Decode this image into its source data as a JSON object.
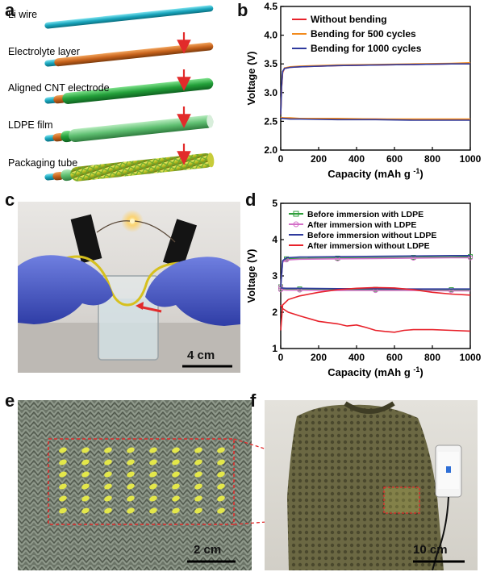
{
  "panels": {
    "a": "a",
    "b": "b",
    "c": "c",
    "d": "d",
    "e": "e",
    "f": "f"
  },
  "panel_a": {
    "labels": [
      "Li wire",
      "Electrolyte layer",
      "Aligned CNT electrode",
      "LDPE film",
      "Packaging tube"
    ]
  },
  "panel_c": {
    "scale_bar": "4 cm"
  },
  "panel_e": {
    "scale_bar": "2 cm"
  },
  "panel_f": {
    "scale_bar": "10 cm"
  },
  "chart_data": [
    {
      "id": "b",
      "type": "line",
      "xlabel": "Capacity (mAh g",
      "xlabel_sup": "-1",
      "xlabel_close": ")",
      "ylabel": "Voltage (V)",
      "xlim": [
        0,
        1000
      ],
      "ylim": [
        2.0,
        4.5
      ],
      "xticks": [
        "0",
        "200",
        "400",
        "600",
        "800",
        "1000"
      ],
      "yticks": [
        "2.0",
        "2.5",
        "3.0",
        "3.5",
        "4.0",
        "4.5"
      ],
      "legend_position": "top-right",
      "series": [
        {
          "name": "Without bending",
          "color": "#e8222b",
          "charge": {
            "x": [
              0,
              5,
              10,
              20,
              50,
              100,
              300,
              500,
              700,
              900,
              1000
            ],
            "y": [
              2.62,
              3.1,
              3.35,
              3.42,
              3.44,
              3.45,
              3.47,
              3.48,
              3.49,
              3.5,
              3.51
            ]
          },
          "discharge": {
            "x": [
              0,
              10,
              50,
              100,
              300,
              500,
              700,
              900,
              1000
            ],
            "y": [
              2.56,
              2.56,
              2.55,
              2.55,
              2.54,
              2.54,
              2.53,
              2.53,
              2.53
            ]
          }
        },
        {
          "name": "Bending for 500 cycles",
          "color": "#f28a1c",
          "charge": {
            "x": [
              0,
              5,
              10,
              20,
              50,
              100,
              300,
              500,
              700,
              900,
              1000
            ],
            "y": [
              2.62,
              3.12,
              3.36,
              3.43,
              3.45,
              3.46,
              3.48,
              3.49,
              3.5,
              3.51,
              3.52
            ]
          },
          "discharge": {
            "x": [
              0,
              10,
              50,
              100,
              300,
              500,
              700,
              900,
              1000
            ],
            "y": [
              2.57,
              2.56,
              2.56,
              2.55,
              2.55,
              2.54,
              2.54,
              2.54,
              2.54
            ]
          }
        },
        {
          "name": "Bending for 1000 cycles",
          "color": "#2f3a9e",
          "charge": {
            "x": [
              0,
              5,
              10,
              20,
              50,
              100,
              300,
              500,
              700,
              900,
              1000
            ],
            "y": [
              2.62,
              3.14,
              3.37,
              3.42,
              3.44,
              3.45,
              3.47,
              3.48,
              3.49,
              3.5,
              3.5
            ]
          },
          "discharge": {
            "x": [
              0,
              10,
              50,
              100,
              300,
              500,
              700,
              900,
              1000
            ],
            "y": [
              2.55,
              2.55,
              2.54,
              2.54,
              2.53,
              2.53,
              2.52,
              2.52,
              2.52
            ]
          }
        }
      ]
    },
    {
      "id": "d",
      "type": "line",
      "xlabel": "Capacity (mAh g",
      "xlabel_sup": "-1",
      "xlabel_close": ")",
      "ylabel": "Voltage (V)",
      "xlim": [
        0,
        1000
      ],
      "ylim": [
        1,
        5
      ],
      "xticks": [
        "0",
        "200",
        "400",
        "600",
        "800",
        "1000"
      ],
      "yticks": [
        "1",
        "2",
        "3",
        "4",
        "5"
      ],
      "legend_position": "top-right",
      "series": [
        {
          "name": "Before immersion with LDPE",
          "color": "#2e9e3a",
          "marker": "square",
          "charge": {
            "x": [
              0,
              10,
              30,
              100,
              300,
              500,
              700,
              900,
              1000
            ],
            "y": [
              2.7,
              3.4,
              3.47,
              3.48,
              3.49,
              3.5,
              3.51,
              3.52,
              3.53
            ]
          },
          "discharge": {
            "x": [
              0,
              30,
              100,
              300,
              500,
              700,
              900,
              1000
            ],
            "y": [
              2.65,
              2.64,
              2.64,
              2.63,
              2.63,
              2.62,
              2.62,
              2.62
            ]
          }
        },
        {
          "name": "After immersion with LDPE",
          "color": "#d46fc8",
          "marker": "circle",
          "charge": {
            "x": [
              0,
              10,
              30,
              100,
              300,
              500,
              700,
              900,
              1000
            ],
            "y": [
              2.7,
              3.38,
              3.44,
              3.46,
              3.47,
              3.48,
              3.49,
              3.5,
              3.5
            ]
          },
          "discharge": {
            "x": [
              0,
              30,
              100,
              300,
              500,
              700,
              900,
              1000
            ],
            "y": [
              2.62,
              2.61,
              2.61,
              2.6,
              2.6,
              2.6,
              2.59,
              2.59
            ]
          }
        },
        {
          "name": "Before immersion without LDPE",
          "color": "#2f3a9e",
          "marker": "line",
          "charge": {
            "x": [
              0,
              10,
              30,
              100,
              300,
              500,
              700,
              900,
              1000
            ],
            "y": [
              2.7,
              3.42,
              3.5,
              3.52,
              3.53,
              3.54,
              3.55,
              3.56,
              3.56
            ]
          },
          "discharge": {
            "x": [
              0,
              30,
              100,
              300,
              500,
              700,
              900,
              1000
            ],
            "y": [
              2.67,
              2.66,
              2.66,
              2.65,
              2.65,
              2.64,
              2.64,
              2.64
            ]
          }
        },
        {
          "name": "After immersion without LDPE",
          "color": "#e8222b",
          "marker": "line",
          "charge": {
            "x": [
              0,
              10,
              40,
              100,
              200,
              300,
              400,
              500,
              600,
              700,
              800,
              900,
              1000
            ],
            "y": [
              1.5,
              2.2,
              2.35,
              2.45,
              2.55,
              2.62,
              2.66,
              2.68,
              2.67,
              2.62,
              2.55,
              2.5,
              2.47
            ]
          },
          "discharge": {
            "x": [
              0,
              10,
              40,
              100,
              200,
              300,
              350,
              400,
              450,
              500,
              550,
              600,
              650,
              700,
              800,
              900,
              1000
            ],
            "y": [
              2.2,
              2.1,
              2.0,
              1.9,
              1.75,
              1.68,
              1.62,
              1.65,
              1.58,
              1.5,
              1.47,
              1.45,
              1.5,
              1.52,
              1.52,
              1.5,
              1.48
            ]
          }
        }
      ]
    }
  ]
}
